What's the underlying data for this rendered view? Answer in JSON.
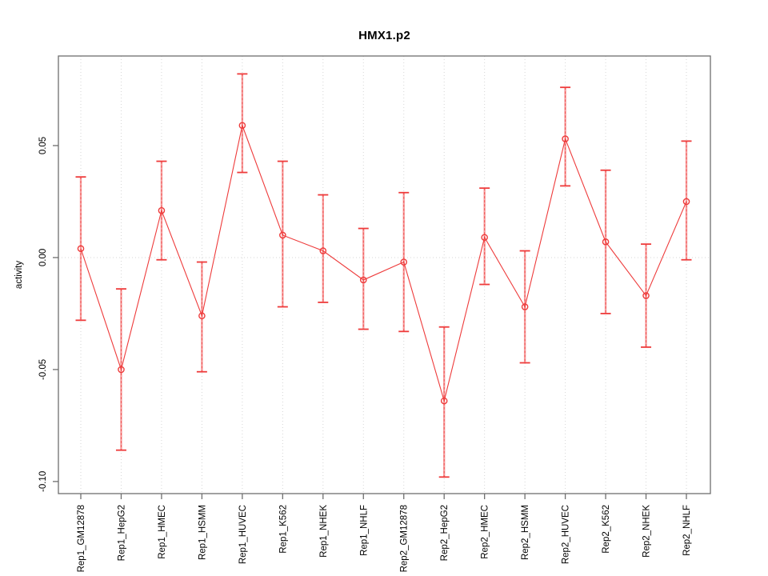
{
  "page": {
    "background": "#ffffff"
  },
  "chart_data": {
    "type": "line",
    "title": "HMX1.p2",
    "xlabel": "",
    "ylabel": "activity",
    "categories": [
      "Rep1_GM12878",
      "Rep1_HepG2",
      "Rep1_HMEC",
      "Rep1_HSMM",
      "Rep1_HUVEC",
      "Rep1_K562",
      "Rep1_NHEK",
      "Rep1_NHLF",
      "Rep2_GM12878",
      "Rep2_HepG2",
      "Rep2_HMEC",
      "Rep2_HSMM",
      "Rep2_HUVEC",
      "Rep2_K562",
      "Rep2_NHEK",
      "Rep2_NHLF"
    ],
    "series": [
      {
        "name": "activity",
        "values": [
          0.004,
          -0.05,
          0.021,
          -0.026,
          0.059,
          0.01,
          0.003,
          -0.01,
          -0.002,
          -0.064,
          0.009,
          -0.022,
          0.053,
          0.007,
          -0.017,
          0.025
        ],
        "upper": [
          0.036,
          -0.014,
          0.043,
          -0.002,
          0.082,
          0.043,
          0.028,
          0.013,
          0.029,
          -0.031,
          0.031,
          0.003,
          0.076,
          0.039,
          0.006,
          0.052
        ],
        "lower": [
          -0.028,
          -0.086,
          -0.001,
          -0.051,
          0.038,
          -0.022,
          -0.02,
          -0.032,
          -0.033,
          -0.098,
          -0.012,
          -0.047,
          0.032,
          -0.025,
          -0.04,
          -0.001
        ]
      }
    ],
    "yticks": [
      {
        "value": 0.05,
        "label": "0.05"
      },
      {
        "value": 0.0,
        "label": "0.00"
      },
      {
        "value": -0.05,
        "label": "-0.05"
      },
      {
        "value": -0.1,
        "label": "-0.10"
      }
    ],
    "ylim": [
      -0.1054,
      0.09
    ],
    "grid": {
      "vertical_per_category": true,
      "horizontal_zero_line": true,
      "style": "dotted"
    },
    "legend": "none",
    "colors": {
      "series": "#ee3b3b",
      "errorbar_light": "#f7a2a2",
      "grid": "#d6d6d6",
      "axis": "#6e6e6e",
      "text": "#000000"
    }
  }
}
